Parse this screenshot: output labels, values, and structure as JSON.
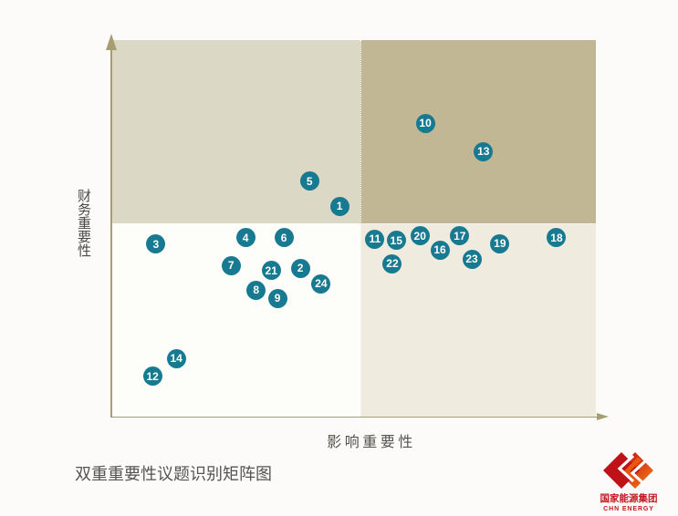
{
  "caption": "双重重要性议题识别矩阵图",
  "logo": {
    "chinese_name": "国家能源集团",
    "english_name": "CHN ENERGY",
    "brand_color": "#c01920"
  },
  "colors": {
    "quadrant_top_left": "#dcd8c6",
    "quadrant_top_right": "#c2b795",
    "quadrant_bottom_left": "#fdfdfa",
    "quadrant_bottom_right": "#efecdf",
    "axis": "#a79d74",
    "point_fill": "#177a90",
    "point_label": "#ffffff",
    "divider": "#ffffff"
  },
  "chart_data": {
    "type": "scatter",
    "title": "双重重要性议题识别矩阵图",
    "xlabel": "影响重要性",
    "ylabel": "财务重要性",
    "xlim": [
      0,
      100
    ],
    "ylim": [
      0,
      100
    ],
    "grid": false,
    "quadrant_split": {
      "x": 51.4,
      "y": 51.4
    },
    "points": [
      {
        "id": "1",
        "x": 47.1,
        "y": 56.0
      },
      {
        "id": "2",
        "x": 39.0,
        "y": 39.6
      },
      {
        "id": "3",
        "x": 9.2,
        "y": 45.9
      },
      {
        "id": "4",
        "x": 27.7,
        "y": 47.6
      },
      {
        "id": "5",
        "x": 40.9,
        "y": 62.6
      },
      {
        "id": "6",
        "x": 35.6,
        "y": 47.6
      },
      {
        "id": "7",
        "x": 24.7,
        "y": 40.3
      },
      {
        "id": "8",
        "x": 29.9,
        "y": 33.8
      },
      {
        "id": "9",
        "x": 34.3,
        "y": 31.6
      },
      {
        "id": "10",
        "x": 64.8,
        "y": 78.0
      },
      {
        "id": "11",
        "x": 54.4,
        "y": 47.3
      },
      {
        "id": "12",
        "x": 8.5,
        "y": 10.9
      },
      {
        "id": "13",
        "x": 76.8,
        "y": 70.5
      },
      {
        "id": "14",
        "x": 13.4,
        "y": 15.7
      },
      {
        "id": "15",
        "x": 58.8,
        "y": 46.9
      },
      {
        "id": "16",
        "x": 67.8,
        "y": 44.4
      },
      {
        "id": "17",
        "x": 71.9,
        "y": 48.1
      },
      {
        "id": "18",
        "x": 91.9,
        "y": 47.6
      },
      {
        "id": "19",
        "x": 80.2,
        "y": 46.1
      },
      {
        "id": "20",
        "x": 63.7,
        "y": 48.1
      },
      {
        "id": "21",
        "x": 33.0,
        "y": 38.9
      },
      {
        "id": "22",
        "x": 58.0,
        "y": 40.8
      },
      {
        "id": "23",
        "x": 74.4,
        "y": 42.0
      },
      {
        "id": "24",
        "x": 43.3,
        "y": 35.5
      }
    ]
  }
}
